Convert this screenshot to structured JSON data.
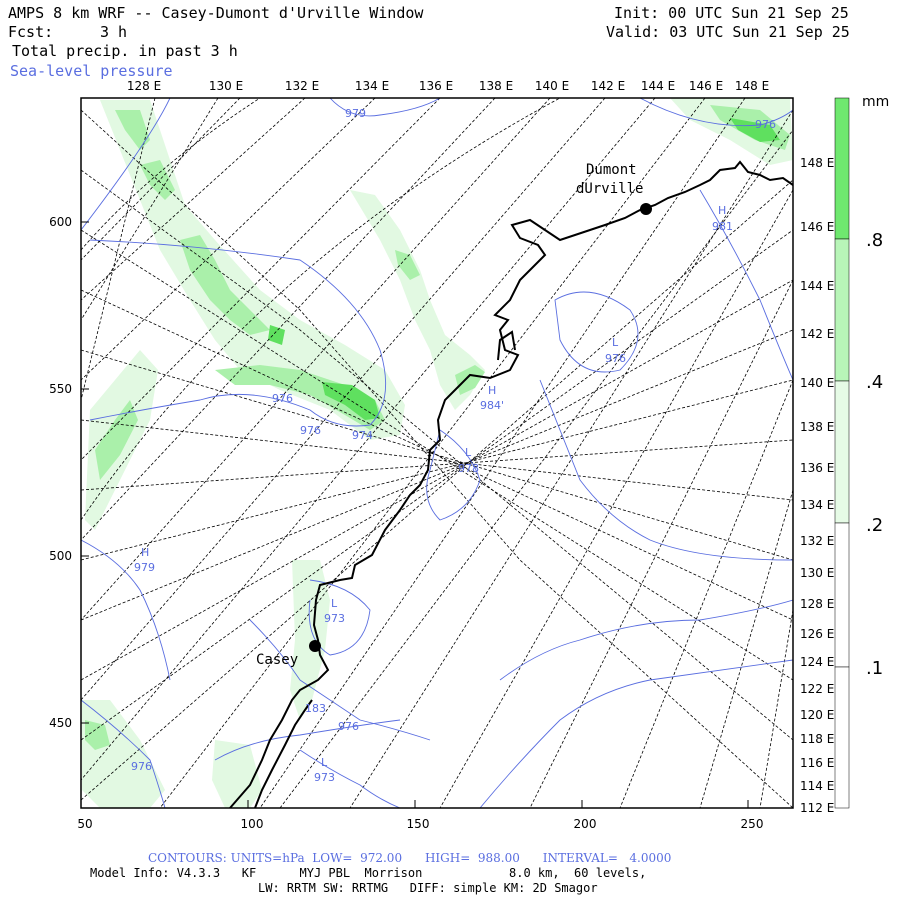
{
  "header": {
    "title": "AMPS 8 km WRF -- Casey-Dumont d'Urville Window",
    "fcst_label": "Fcst:",
    "fcst_value": "3 h",
    "field1": "Total precip. in past 3 h",
    "field2": "Sea-level pressure",
    "init": "Init: 00 UTC Sun 21 Sep 25",
    "valid": "Valid: 03 UTC Sun 21 Sep 25"
  },
  "axes": {
    "top_lon_labels": [
      "128 E",
      "130 E",
      "132 E",
      "134 E",
      "136 E",
      "138 E",
      "140 E",
      "142 E",
      "144 E",
      "146 E",
      "148 E"
    ],
    "right_lon_labels": [
      "148 E",
      "146 E",
      "144 E",
      "142 E",
      "140 E",
      "138 E",
      "136 E",
      "134 E",
      "132 E",
      "130 E",
      "128 E",
      "126 E",
      "124 E",
      "122 E",
      "120 E",
      "118 E",
      "116 E",
      "114 E",
      "112 E"
    ],
    "x_ticks": [
      "50",
      "100",
      "150",
      "200",
      "250"
    ],
    "y_ticks": [
      "600",
      "550",
      "500",
      "450"
    ]
  },
  "legend": {
    "units": "mm",
    "levels": [
      ".1",
      ".2",
      ".4",
      ".8"
    ],
    "colors": [
      "#ffffff",
      "#e6fbe6",
      "#b8f5b8",
      "#6fe86f"
    ]
  },
  "stations": [
    {
      "name1": "Dumont",
      "name2": "dUrville"
    },
    {
      "name1": "Casey",
      "name2": ""
    }
  ],
  "contour_labels": [
    {
      "text": "979"
    },
    {
      "text": "976"
    },
    {
      "text": "H"
    },
    {
      "text": "981"
    },
    {
      "text": "L"
    },
    {
      "text": "976"
    },
    {
      "text": "H"
    },
    {
      "text": "984'"
    },
    {
      "text": "976"
    },
    {
      "text": "976"
    },
    {
      "text": "974"
    },
    {
      "text": "L"
    },
    {
      "text": "978"
    },
    {
      "text": "H"
    },
    {
      "text": "979"
    },
    {
      "text": "L"
    },
    {
      "text": "973"
    },
    {
      "text": "183"
    },
    {
      "text": "976"
    },
    {
      "text": "976"
    },
    {
      "text": "L"
    },
    {
      "text": "973"
    }
  ],
  "footer": {
    "line1": "CONTOURS: UNITS=hPa  LOW=  972.00      HIGH=  988.00      INTERVAL=   4.0000",
    "line2": "Model Info: V4.3.3   KF      MYJ PBL  Morrison            8.0 km,  60 levels,",
    "line3": "LW: RRTM SW: RRTMG   DIFF: simple KM: 2D Smagor"
  }
}
